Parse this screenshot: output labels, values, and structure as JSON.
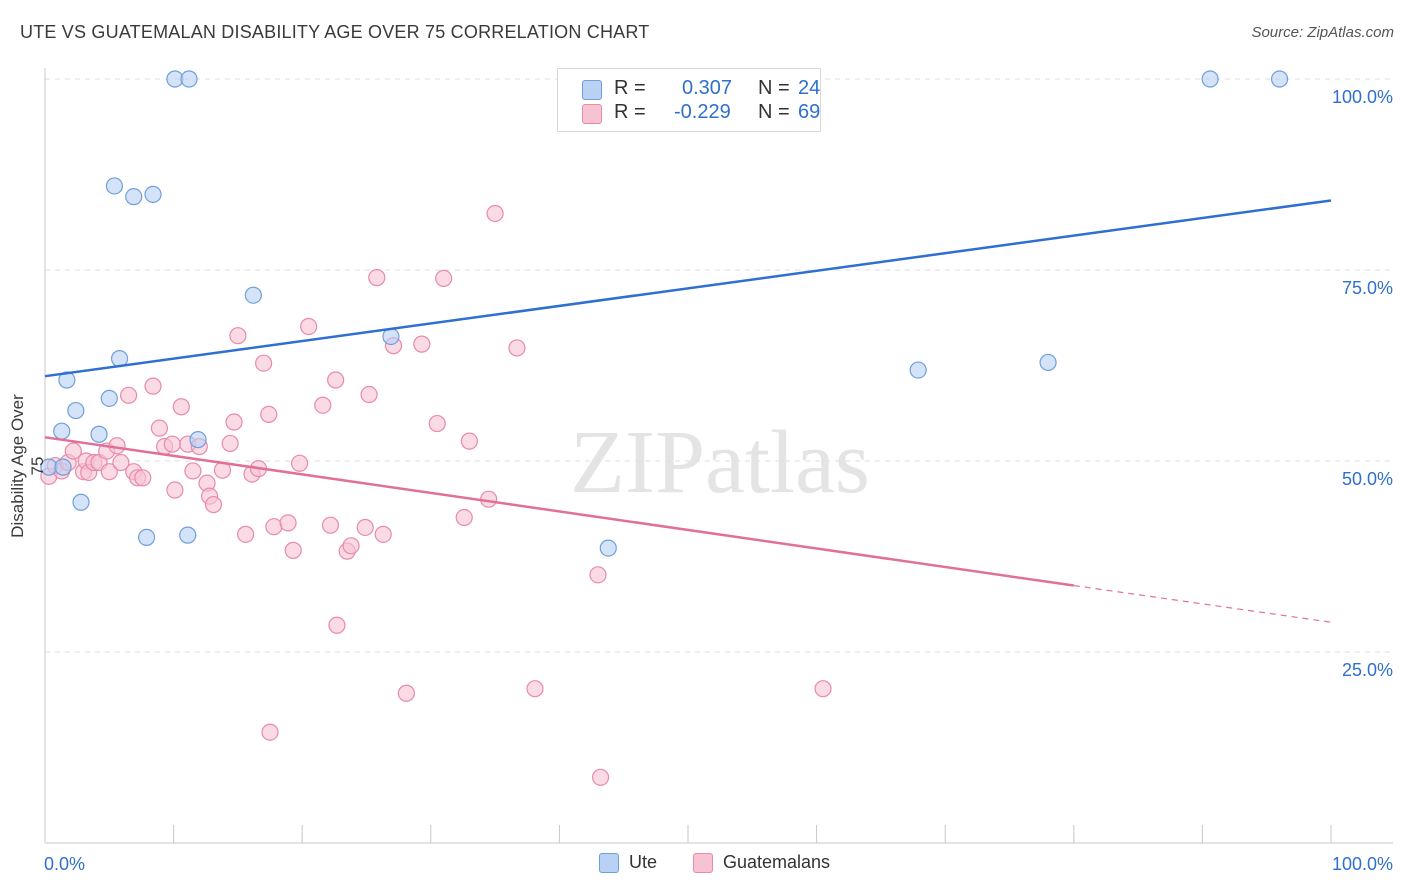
{
  "title": "UTE VS GUATEMALAN DISABILITY AGE OVER 75 CORRELATION CHART",
  "source": "Source: ZipAtlas.com",
  "watermark": "ZIPatlas",
  "legend": {
    "rows": [
      {
        "r_label": "R =",
        "r_value": "0.307",
        "n_label": "N =",
        "n_value": "24"
      },
      {
        "r_label": "R =",
        "r_value": "-0.229",
        "n_label": "N =",
        "n_value": "69"
      }
    ],
    "series_names": [
      "Ute",
      "Guatemalans"
    ]
  },
  "colors": {
    "ute_fill": "#b9d1f3",
    "ute_stroke": "#6f9fdc",
    "ute_line": "#2f6fcf",
    "guat_fill": "#f7c3d3",
    "guat_stroke": "#e98aa8",
    "guat_line": "#e0709a",
    "value_text": "#2f6fcf",
    "grid": "#dddddd"
  },
  "chart_data": {
    "type": "scatter",
    "title": "UTE VS GUATEMALAN DISABILITY AGE OVER 75 CORRELATION CHART",
    "xlabel": "",
    "ylabel": "Disability Age Over 75",
    "xlim": [
      0,
      100
    ],
    "ylim": [
      0,
      100
    ],
    "x_tick_labels": [
      "0.0%",
      "100.0%"
    ],
    "y_tick_labels": [
      "100.0%",
      "75.0%",
      "50.0%",
      "25.0%"
    ],
    "y_ticks": [
      100,
      75,
      50,
      25
    ],
    "grid": true,
    "legend_position": "top-center",
    "series": [
      {
        "name": "Ute",
        "r": 0.307,
        "n": 24,
        "trend": {
          "x0": 0,
          "y0": 61.1,
          "x1": 100,
          "y1": 84.1
        },
        "points": [
          [
            0.3,
            49.2
          ],
          [
            1.4,
            49.2
          ],
          [
            1.3,
            53.9
          ],
          [
            1.7,
            60.6
          ],
          [
            2.4,
            56.6
          ],
          [
            2.8,
            44.6
          ],
          [
            4.2,
            53.5
          ],
          [
            5.0,
            58.2
          ],
          [
            5.4,
            86.0
          ],
          [
            5.8,
            63.4
          ],
          [
            6.9,
            84.6
          ],
          [
            7.9,
            40.0
          ],
          [
            8.4,
            84.9
          ],
          [
            10.1,
            100.0
          ],
          [
            11.1,
            40.3
          ],
          [
            11.2,
            100.0
          ],
          [
            11.9,
            52.8
          ],
          [
            16.2,
            71.7
          ],
          [
            26.9,
            66.3
          ],
          [
            43.8,
            38.6
          ],
          [
            67.9,
            61.9
          ],
          [
            78.0,
            62.9
          ],
          [
            90.6,
            100.0
          ],
          [
            96.0,
            100.0
          ]
        ]
      },
      {
        "name": "Guatemalans",
        "r": -0.229,
        "n": 69,
        "trend": {
          "x0": 0,
          "y0": 53.1,
          "x1": 80,
          "y1": 33.7,
          "dashed_to_x": 100,
          "dashed_to_y": 28.9
        },
        "points": [
          [
            0.3,
            48.0
          ],
          [
            0.8,
            49.4
          ],
          [
            1.3,
            48.7
          ],
          [
            1.8,
            49.8
          ],
          [
            2.2,
            51.3
          ],
          [
            3.0,
            48.6
          ],
          [
            3.2,
            50.0
          ],
          [
            3.4,
            48.5
          ],
          [
            3.8,
            49.8
          ],
          [
            4.2,
            49.8
          ],
          [
            4.8,
            51.3
          ],
          [
            5.0,
            48.6
          ],
          [
            5.6,
            52.0
          ],
          [
            5.9,
            49.8
          ],
          [
            6.5,
            58.6
          ],
          [
            6.9,
            48.6
          ],
          [
            7.2,
            47.8
          ],
          [
            7.6,
            47.8
          ],
          [
            8.4,
            59.8
          ],
          [
            8.9,
            54.3
          ],
          [
            9.3,
            51.9
          ],
          [
            9.9,
            52.2
          ],
          [
            10.1,
            46.2
          ],
          [
            10.6,
            57.1
          ],
          [
            11.1,
            52.2
          ],
          [
            11.5,
            48.7
          ],
          [
            12.0,
            51.9
          ],
          [
            12.6,
            47.1
          ],
          [
            12.8,
            45.4
          ],
          [
            13.1,
            44.3
          ],
          [
            13.8,
            48.8
          ],
          [
            14.4,
            52.3
          ],
          [
            14.7,
            55.1
          ],
          [
            15.0,
            66.4
          ],
          [
            15.6,
            40.4
          ],
          [
            16.1,
            48.3
          ],
          [
            16.6,
            49.0
          ],
          [
            17.0,
            62.8
          ],
          [
            17.4,
            56.1
          ],
          [
            17.8,
            41.4
          ],
          [
            18.9,
            41.9
          ],
          [
            19.3,
            38.3
          ],
          [
            19.8,
            49.7
          ],
          [
            20.5,
            67.6
          ],
          [
            21.6,
            57.3
          ],
          [
            22.2,
            41.6
          ],
          [
            22.6,
            60.6
          ],
          [
            22.7,
            28.5
          ],
          [
            23.5,
            38.2
          ],
          [
            23.8,
            38.9
          ],
          [
            24.9,
            41.3
          ],
          [
            25.2,
            58.7
          ],
          [
            25.8,
            74.0
          ],
          [
            26.3,
            40.4
          ],
          [
            27.1,
            65.1
          ],
          [
            28.1,
            19.6
          ],
          [
            29.3,
            65.3
          ],
          [
            30.5,
            54.9
          ],
          [
            31.0,
            73.9
          ],
          [
            32.6,
            42.6
          ],
          [
            33.0,
            52.6
          ],
          [
            34.5,
            45.0
          ],
          [
            35.0,
            82.4
          ],
          [
            36.7,
            64.8
          ],
          [
            38.1,
            20.2
          ],
          [
            43.0,
            35.1
          ],
          [
            43.2,
            8.6
          ],
          [
            60.5,
            20.2
          ],
          [
            17.5,
            14.5
          ]
        ]
      }
    ]
  }
}
